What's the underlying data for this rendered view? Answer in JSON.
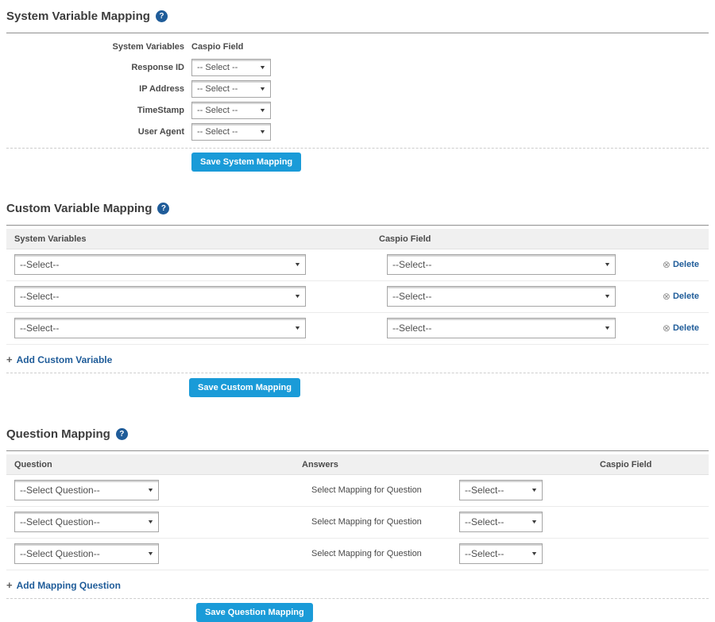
{
  "colors": {
    "button_blue": "#1a9bd8",
    "link_blue": "#1f5c99",
    "help_icon_blue": "#1f5c99",
    "header_gray": "#f0f0f0",
    "title_text": "#3d3d3d"
  },
  "icons": {
    "help": "?",
    "dropdown_arrow": "▼",
    "delete": "⊗",
    "add": "+"
  },
  "sections": {
    "system": {
      "title": "System Variable Mapping",
      "col_system": "System Variables",
      "col_caspio": "Caspio Field",
      "rows": [
        {
          "label": "Response ID",
          "value": "-- Select --"
        },
        {
          "label": "IP Address",
          "value": "-- Select --"
        },
        {
          "label": "TimeStamp",
          "value": "-- Select --"
        },
        {
          "label": "User Agent",
          "value": "-- Select --"
        }
      ],
      "save_label": "Save System Mapping"
    },
    "custom": {
      "title": "Custom Variable Mapping",
      "col_system": "System Variables",
      "col_caspio": "Caspio Field",
      "rows": [
        {
          "system_value": "--Select--",
          "caspio_value": "--Select--",
          "delete_label": "Delete"
        },
        {
          "system_value": "--Select--",
          "caspio_value": "--Select--",
          "delete_label": "Delete"
        },
        {
          "system_value": "--Select--",
          "caspio_value": "--Select--",
          "delete_label": "Delete"
        }
      ],
      "add_label": "Add Custom Variable",
      "save_label": "Save Custom Mapping"
    },
    "question": {
      "title": "Question Mapping",
      "col_question": "Question",
      "col_answers": "Answers",
      "col_caspio": "Caspio Field",
      "rows": [
        {
          "question_value": "--Select Question--",
          "answers_label": "Select Mapping for Question",
          "caspio_value": "--Select--"
        },
        {
          "question_value": "--Select Question--",
          "answers_label": "Select Mapping for Question",
          "caspio_value": "--Select--"
        },
        {
          "question_value": "--Select Question--",
          "answers_label": "Select Mapping for Question",
          "caspio_value": "--Select--"
        }
      ],
      "add_label": "Add Mapping Question",
      "save_label": "Save Question Mapping"
    }
  }
}
